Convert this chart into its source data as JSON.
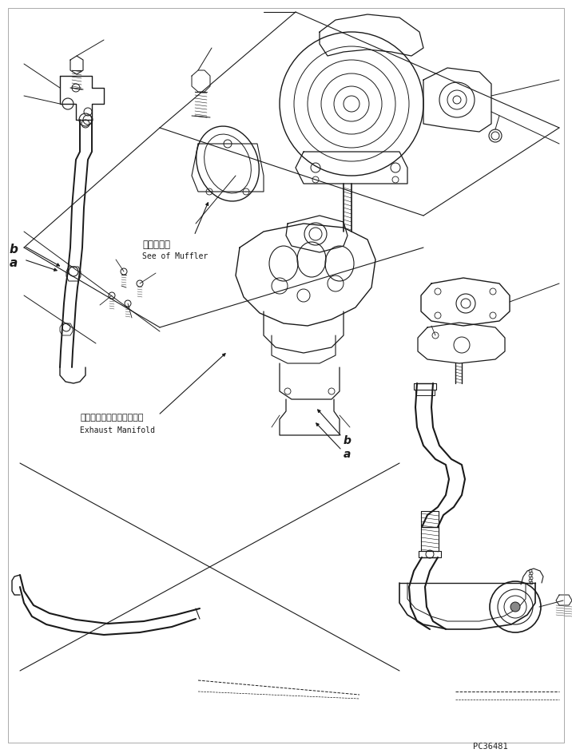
{
  "background_color": "#ffffff",
  "line_color": "#1a1a1a",
  "fig_width": 7.16,
  "fig_height": 9.43,
  "dpi": 100,
  "watermark": "PC36481",
  "label_b1": "b",
  "label_a1": "a",
  "label_b2": "b",
  "label_a2": "a",
  "annotation1_jp": "マフラ参照",
  "annotation1_en": "See of Muffler",
  "annotation2_jp": "エキゾーストマニホールド",
  "annotation2_en": "Exhaust Manifold"
}
